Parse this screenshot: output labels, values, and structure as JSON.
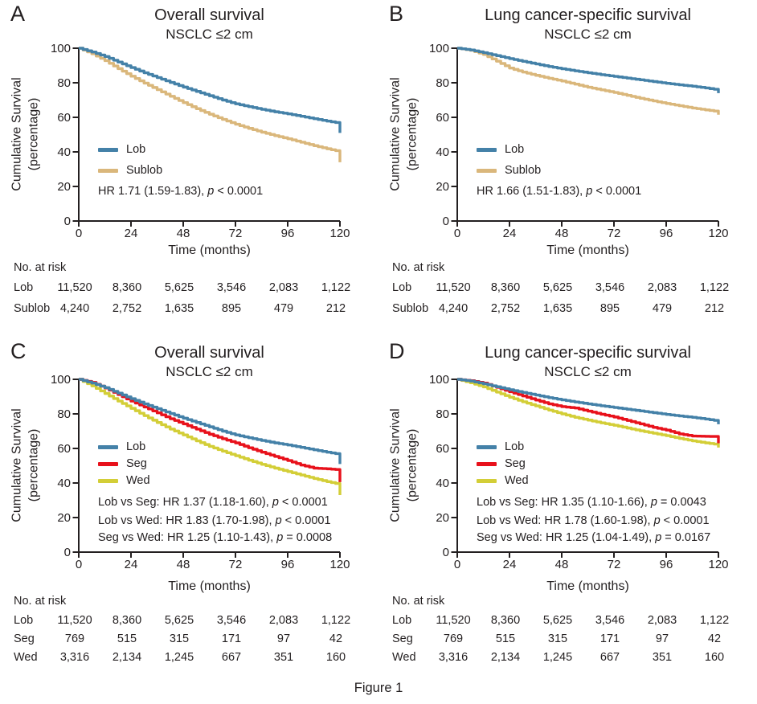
{
  "figure": {
    "caption": "Figure 1"
  },
  "colors": {
    "lob": "#4481A8",
    "sublob": "#DAB77B",
    "seg": "#E8111B",
    "wed": "#D3CE37",
    "ink": "#231F20"
  },
  "x_months": [
    0,
    6,
    12,
    18,
    24,
    30,
    36,
    42,
    48,
    54,
    60,
    66,
    72,
    78,
    84,
    90,
    96,
    102,
    108,
    114,
    120
  ],
  "chart_data": [
    {
      "panel": "A",
      "type": "line",
      "title": "Overall survival",
      "subtitle": "NSCLC ≤2 cm",
      "xlabel": "Time (months)",
      "ylabel_line1": "Cumulative Survival",
      "ylabel_line2": "(percentage)",
      "xlim": [
        0,
        120
      ],
      "ylim": [
        0,
        100
      ],
      "x_ticks": [
        0,
        24,
        48,
        72,
        96,
        120
      ],
      "y_ticks": [
        0,
        20,
        40,
        60,
        80,
        100
      ],
      "series": [
        {
          "name": "Lob",
          "color": "#4481A8",
          "y": [
            100,
            97.8,
            95.2,
            92.0,
            88.8,
            85.8,
            83.0,
            80.2,
            77.5,
            75.0,
            72.5,
            70.0,
            67.8,
            66.2,
            64.6,
            63.2,
            62.0,
            60.6,
            59.2,
            57.8,
            56.6
          ],
          "drop_to": 51
        },
        {
          "name": "Sublob",
          "color": "#DAB77B",
          "y": [
            100,
            96.8,
            92.8,
            88.2,
            83.8,
            79.8,
            76.0,
            72.2,
            68.5,
            65.0,
            61.8,
            58.8,
            56.0,
            53.6,
            51.4,
            49.4,
            47.6,
            45.6,
            43.6,
            41.8,
            40.2
          ],
          "drop_to": 34
        }
      ],
      "hr_stats": [
        {
          "before": "HR 1.71 (1.59-1.83), ",
          "p": "p",
          "after": " < 0.0001"
        }
      ],
      "risk_table": {
        "header": "No. at risk",
        "time_points": [
          0,
          24,
          48,
          72,
          96,
          120
        ],
        "rows": [
          {
            "name": "Lob",
            "values": [
              "11,520",
              "8,360",
              "5,625",
              "3,546",
              "2,083",
              "1,122"
            ]
          },
          {
            "name": "Sublob",
            "values": [
              "4,240",
              "2,752",
              "1,635",
              "895",
              "479",
              "212"
            ]
          }
        ]
      }
    },
    {
      "panel": "B",
      "type": "line",
      "title": "Lung cancer-specific survival",
      "subtitle": "NSCLC ≤2 cm",
      "xlabel": "Time (months)",
      "ylabel_line1": "Cumulative Survival",
      "ylabel_line2": "(percentage)",
      "xlim": [
        0,
        120
      ],
      "ylim": [
        0,
        100
      ],
      "x_ticks": [
        0,
        24,
        48,
        72,
        96,
        120
      ],
      "y_ticks": [
        0,
        20,
        40,
        60,
        80,
        100
      ],
      "series": [
        {
          "name": "Lob",
          "color": "#4481A8",
          "y": [
            100,
            99.0,
            97.4,
            95.7,
            94.0,
            92.4,
            90.9,
            89.4,
            88.1,
            86.9,
            85.8,
            84.7,
            83.7,
            82.7,
            81.7,
            80.7,
            79.7,
            78.8,
            78.0,
            77.0,
            75.9
          ],
          "drop_to": 74
        },
        {
          "name": "Sublob",
          "color": "#DAB77B",
          "y": [
            100,
            98.8,
            96.4,
            92.5,
            88.5,
            86.2,
            84.3,
            82.6,
            81.0,
            79.2,
            77.4,
            75.9,
            74.4,
            72.7,
            71.0,
            69.5,
            68.0,
            66.7,
            65.4,
            64.3,
            63.3
          ],
          "drop_to": 61.5
        }
      ],
      "hr_stats": [
        {
          "before": "HR 1.66 (1.51-1.83), ",
          "p": "p",
          "after": " < 0.0001"
        }
      ],
      "risk_table": {
        "header": "No. at risk",
        "time_points": [
          0,
          24,
          48,
          72,
          96,
          120
        ],
        "rows": [
          {
            "name": "Lob",
            "values": [
              "11,520",
              "8,360",
              "5,625",
              "3,546",
              "2,083",
              "1,122"
            ]
          },
          {
            "name": "Sublob",
            "values": [
              "4,240",
              "2,752",
              "1,635",
              "895",
              "479",
              "212"
            ]
          }
        ]
      }
    },
    {
      "panel": "C",
      "type": "line",
      "title": "Overall survival",
      "subtitle": "NSCLC ≤2 cm",
      "xlabel": "Time (months)",
      "ylabel_line1": "Cumulative Survival",
      "ylabel_line2": "(percentage)",
      "xlim": [
        0,
        120
      ],
      "ylim": [
        0,
        100
      ],
      "x_ticks": [
        0,
        24,
        48,
        72,
        96,
        120
      ],
      "y_ticks": [
        0,
        20,
        40,
        60,
        80,
        100
      ],
      "series": [
        {
          "name": "Lob",
          "color": "#4481A8",
          "y": [
            100,
            97.8,
            95.2,
            92.0,
            88.8,
            85.8,
            83.0,
            80.2,
            77.5,
            75.0,
            72.5,
            70.0,
            67.8,
            66.2,
            64.6,
            63.2,
            62.0,
            60.6,
            59.2,
            57.8,
            56.6
          ],
          "drop_to": 51
        },
        {
          "name": "Seg",
          "color": "#E8111B",
          "y": [
            100,
            98.2,
            95.0,
            91.2,
            87.4,
            84.0,
            80.6,
            77.2,
            74.2,
            71.2,
            68.2,
            65.6,
            63.2,
            60.4,
            57.8,
            55.4,
            53.0,
            50.4,
            48.6,
            48.2,
            47.6
          ],
          "drop_to": 40.5
        },
        {
          "name": "Wed",
          "color": "#D3CE37",
          "y": [
            100,
            96.2,
            91.8,
            87.4,
            83.2,
            79.0,
            75.0,
            71.2,
            67.8,
            64.4,
            61.2,
            58.4,
            55.8,
            53.2,
            50.8,
            48.6,
            46.6,
            44.6,
            42.6,
            40.8,
            39.2
          ],
          "drop_to": 33
        }
      ],
      "hr_stats": [
        {
          "before": "Lob vs Seg: HR 1.37 (1.18-1.60), ",
          "p": "p",
          "after": " < 0.0001"
        },
        {
          "before": "Lob vs Wed: HR 1.83 (1.70-1.98), ",
          "p": "p",
          "after": " < 0.0001"
        },
        {
          "before": "Seg vs Wed: HR 1.25 (1.10-1.43), ",
          "p": "p",
          "after": " = 0.0008"
        }
      ],
      "risk_table": {
        "header": "No. at risk",
        "time_points": [
          0,
          24,
          48,
          72,
          96,
          120
        ],
        "rows": [
          {
            "name": "Lob",
            "values": [
              "11,520",
              "8,360",
              "5,625",
              "3,546",
              "2,083",
              "1,122"
            ]
          },
          {
            "name": "Seg",
            "values": [
              "769",
              "515",
              "315",
              "171",
              "97",
              "42"
            ]
          },
          {
            "name": "Wed",
            "values": [
              "3,316",
              "2,134",
              "1,245",
              "667",
              "351",
              "160"
            ]
          }
        ]
      }
    },
    {
      "panel": "D",
      "type": "line",
      "title": "Lung cancer-specific survival",
      "subtitle": "NSCLC ≤2 cm",
      "xlabel": "Time (months)",
      "ylabel_line1": "Cumulative Survival",
      "ylabel_line2": "(percentage)",
      "xlim": [
        0,
        120
      ],
      "ylim": [
        0,
        100
      ],
      "x_ticks": [
        0,
        24,
        48,
        72,
        96,
        120
      ],
      "y_ticks": [
        0,
        20,
        40,
        60,
        80,
        100
      ],
      "series": [
        {
          "name": "Lob",
          "color": "#4481A8",
          "y": [
            100,
            99.0,
            97.4,
            95.7,
            94.0,
            92.4,
            90.9,
            89.4,
            88.1,
            86.9,
            85.8,
            84.7,
            83.7,
            82.7,
            81.7,
            80.7,
            79.7,
            78.8,
            78.0,
            77.0,
            75.9
          ],
          "drop_to": 74
        },
        {
          "name": "Seg",
          "color": "#E8111B",
          "y": [
            100,
            99.2,
            97.8,
            95.4,
            92.8,
            90.4,
            88.0,
            85.8,
            84.2,
            83.4,
            81.6,
            79.8,
            78.2,
            76.2,
            74.2,
            72.2,
            70.6,
            68.4,
            67.2,
            67.0,
            66.9
          ],
          "drop_to": 63
        },
        {
          "name": "Wed",
          "color": "#D3CE37",
          "y": [
            100,
            98.0,
            95.6,
            92.6,
            89.6,
            87.0,
            84.6,
            82.2,
            80.0,
            78.0,
            76.4,
            74.8,
            73.4,
            71.8,
            70.2,
            68.8,
            67.4,
            65.8,
            64.4,
            63.2,
            62.2
          ],
          "drop_to": 60.5
        }
      ],
      "hr_stats": [
        {
          "before": "Lob vs Seg: HR 1.35 (1.10-1.66), ",
          "p": "p",
          "after": " = 0.0043"
        },
        {
          "before": "Lob vs Wed: HR 1.78 (1.60-1.98), ",
          "p": "p",
          "after": " < 0.0001"
        },
        {
          "before": "Seg vs Wed: HR 1.25 (1.04-1.49), ",
          "p": "p",
          "after": " = 0.0167"
        }
      ],
      "risk_table": {
        "header": "No. at risk",
        "time_points": [
          0,
          24,
          48,
          72,
          96,
          120
        ],
        "rows": [
          {
            "name": "Lob",
            "values": [
              "11,520",
              "8,360",
              "5,625",
              "3,546",
              "2,083",
              "1,122"
            ]
          },
          {
            "name": "Seg",
            "values": [
              "769",
              "515",
              "315",
              "171",
              "97",
              "42"
            ]
          },
          {
            "name": "Wed",
            "values": [
              "3,316",
              "2,134",
              "1,245",
              "667",
              "351",
              "160"
            ]
          }
        ]
      }
    }
  ]
}
